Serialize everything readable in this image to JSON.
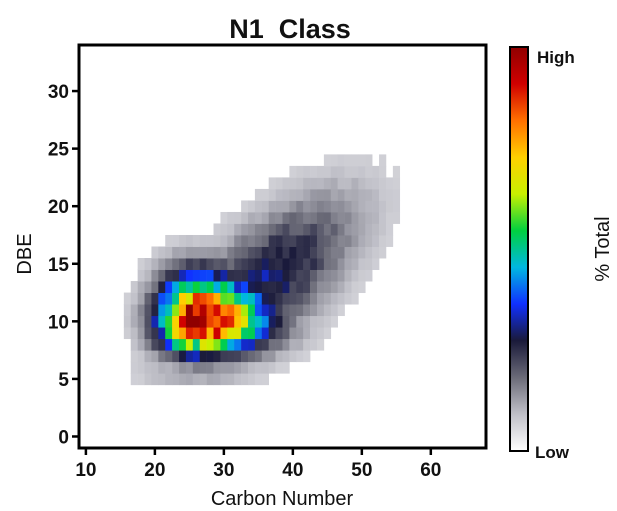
{
  "chart_data": {
    "type": "heatmap",
    "title": "N1  Class",
    "xlabel": "Carbon Number",
    "ylabel": "DBE",
    "xlim": [
      9,
      68
    ],
    "ylim": [
      -1,
      34
    ],
    "xticks": [
      10,
      20,
      30,
      40,
      50,
      60
    ],
    "yticks": [
      0,
      5,
      10,
      15,
      20,
      25,
      30
    ],
    "grid": false,
    "colorbar": {
      "label": "% Total",
      "high_label": "High",
      "low_label": "Low",
      "colors": [
        "#ffffff",
        "#c0c0c8",
        "#6b6b78",
        "#1a1a3a",
        "#1030ff",
        "#00b8e0",
        "#00d040",
        "#c8f000",
        "#ffd000",
        "#ff7000",
        "#d00000",
        "#900000"
      ]
    },
    "density_model": {
      "peak": {
        "carbon_number": 26,
        "dbe": 10,
        "intensity": 1.0
      },
      "core": {
        "carbon_range": [
          15,
          48
        ],
        "dbe_range": [
          5,
          16
        ]
      },
      "tail": {
        "carbon_range": [
          15,
          60
        ],
        "dbe_range": [
          5,
          26
        ]
      },
      "notes": "Intensity increases from Low (white/grey) to High (dark red)"
    }
  }
}
